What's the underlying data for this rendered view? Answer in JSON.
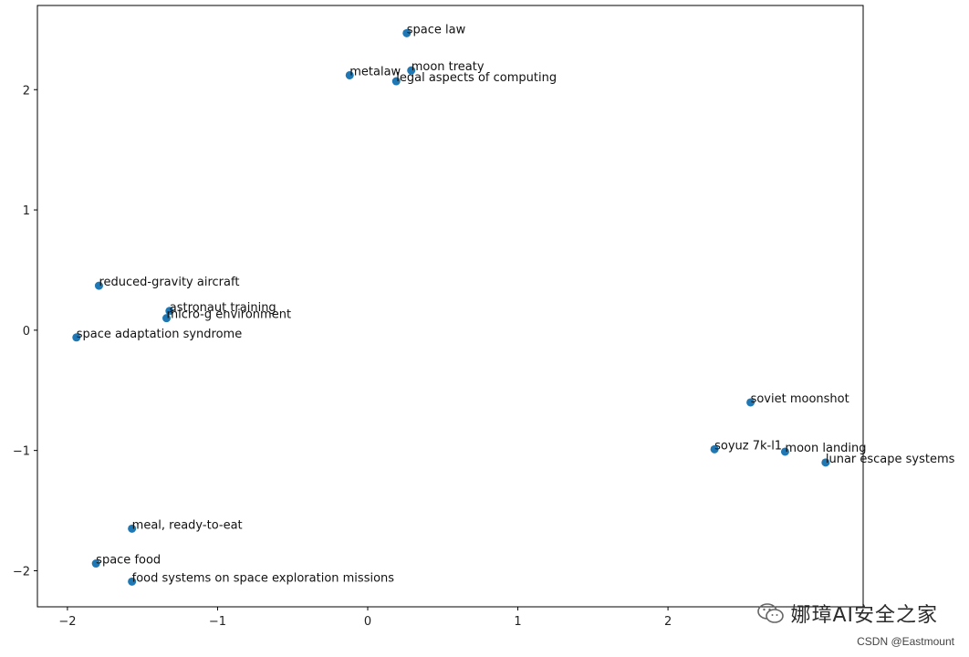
{
  "chart_data": {
    "type": "scatter",
    "title": "",
    "xlabel": "",
    "ylabel": "",
    "xlim": [
      -2.2,
      3.3
    ],
    "ylim": [
      -2.3,
      2.7
    ],
    "x_ticks": [
      -2,
      -1,
      0,
      1,
      2
    ],
    "y_ticks": [
      -2,
      -1,
      0,
      1,
      2
    ],
    "tick_labels_x": [
      "−2",
      "−1",
      "0",
      "1",
      "2"
    ],
    "tick_labels_y": [
      "−2",
      "−1",
      "0",
      "1",
      "2"
    ],
    "grid": false,
    "marker_color": "#1f77b4",
    "points": [
      {
        "label": "space law",
        "x": 0.26,
        "y": 2.47
      },
      {
        "label": "metalaw",
        "x": -0.12,
        "y": 2.12
      },
      {
        "label": "moon treaty",
        "x": 0.29,
        "y": 2.16
      },
      {
        "label": "legal aspects of computing",
        "x": 0.19,
        "y": 2.07
      },
      {
        "label": "reduced-gravity aircraft",
        "x": -1.79,
        "y": 0.37
      },
      {
        "label": "astronaut training",
        "x": -1.32,
        "y": 0.16
      },
      {
        "label": "micro-g environment",
        "x": -1.34,
        "y": 0.1
      },
      {
        "label": "space adaptation syndrome",
        "x": -1.94,
        "y": -0.06
      },
      {
        "label": "soviet moonshot",
        "x": 2.55,
        "y": -0.6
      },
      {
        "label": "soyuz 7k-l1",
        "x": 2.31,
        "y": -0.99
      },
      {
        "label": "moon landing",
        "x": 2.78,
        "y": -1.01
      },
      {
        "label": "lunar escape systems",
        "x": 3.05,
        "y": -1.1
      },
      {
        "label": "meal, ready-to-eat",
        "x": -1.57,
        "y": -1.65
      },
      {
        "label": "space food",
        "x": -1.81,
        "y": -1.94
      },
      {
        "label": "food systems on space exploration missions",
        "x": -1.57,
        "y": -2.09
      }
    ]
  },
  "watermark": {
    "icon": "wechat-icon",
    "text": "娜璋AI安全之家",
    "credit": "CSDN @Eastmount"
  }
}
